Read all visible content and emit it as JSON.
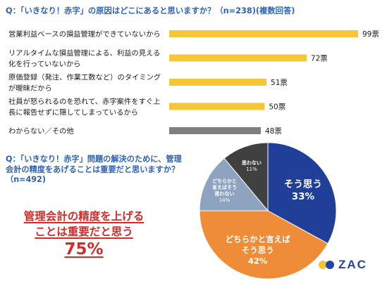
{
  "question1": {
    "title": "Q：「いきなり！赤字」の原因はどこにあると思いますか？（n=238)(複数回答)"
  },
  "question2": {
    "title_lines": [
      "Q：「いきなり！赤字」問題の解決のために、管理",
      "会計の精度をあげることは重要だと思いますか？",
      "（n=492)"
    ]
  },
  "emphasis": {
    "line1": "管理会計の精度を上げる",
    "line2": "ことは重要だと思う",
    "percent": "75%"
  },
  "logo": {
    "text": "ZAC"
  },
  "colors": {
    "bar_yellow": "#f6c637",
    "bar_gray": "#7f7f7f",
    "question_blue": "#2e63b4",
    "emphasis_red": "#d42a2a",
    "pie_navy": "#1f3f99",
    "pie_orange": "#ef8c37",
    "pie_slate": "#8da3c0",
    "pie_dark": "#404040",
    "logo_blue": "#1f47a3",
    "logo_yellow": "#f3c431"
  },
  "chart_data": [
    {
      "type": "bar",
      "orientation": "horizontal",
      "categories": [
        [
          "営業利益ベースの損益管理ができていないから"
        ],
        [
          "リアルタイムな損益管理による、利益の見える",
          "化を行っていないから"
        ],
        [
          "原価登録（発注、作業工数など）のタイミング",
          "が曖昧だから"
        ],
        [
          "社員が怒られるのを恐れて、赤字案件をすぐ上",
          "長に報告せずに隠してしまっているから"
        ],
        [
          "わからない／その他"
        ]
      ],
      "values": [
        99,
        72,
        51,
        50,
        48
      ],
      "value_labels": [
        "99票",
        "72票",
        "51票",
        "50票",
        "48票"
      ],
      "bar_colors": [
        "#f6c637",
        "#f6c637",
        "#f6c637",
        "#f6c637",
        "#7f7f7f"
      ],
      "xlim": [
        0,
        99
      ],
      "grid": false
    },
    {
      "type": "pie",
      "slices": [
        {
          "label_lines": [
            "そう思う"
          ],
          "pct_text": "33%",
          "value": 33,
          "color": "#1f3f99",
          "text_color": "#ffffff",
          "style": "large"
        },
        {
          "label_lines": [
            "どちらかと言えば",
            "そう思う"
          ],
          "pct_text": "42%",
          "value": 42,
          "color": "#ef8c37",
          "text_color": "#ffffff",
          "style": "large"
        },
        {
          "label_lines": [
            "どちらかと",
            "言えばそう",
            "思わない"
          ],
          "pct_text": "14%",
          "value": 14,
          "color": "#8da3c0",
          "text_color": "#ffffff",
          "style": "small"
        },
        {
          "label_lines": [
            "思わない"
          ],
          "pct_text": "11%",
          "value": 11,
          "color": "#404040",
          "text_color": "#ffffff",
          "style": "small"
        }
      ]
    }
  ]
}
